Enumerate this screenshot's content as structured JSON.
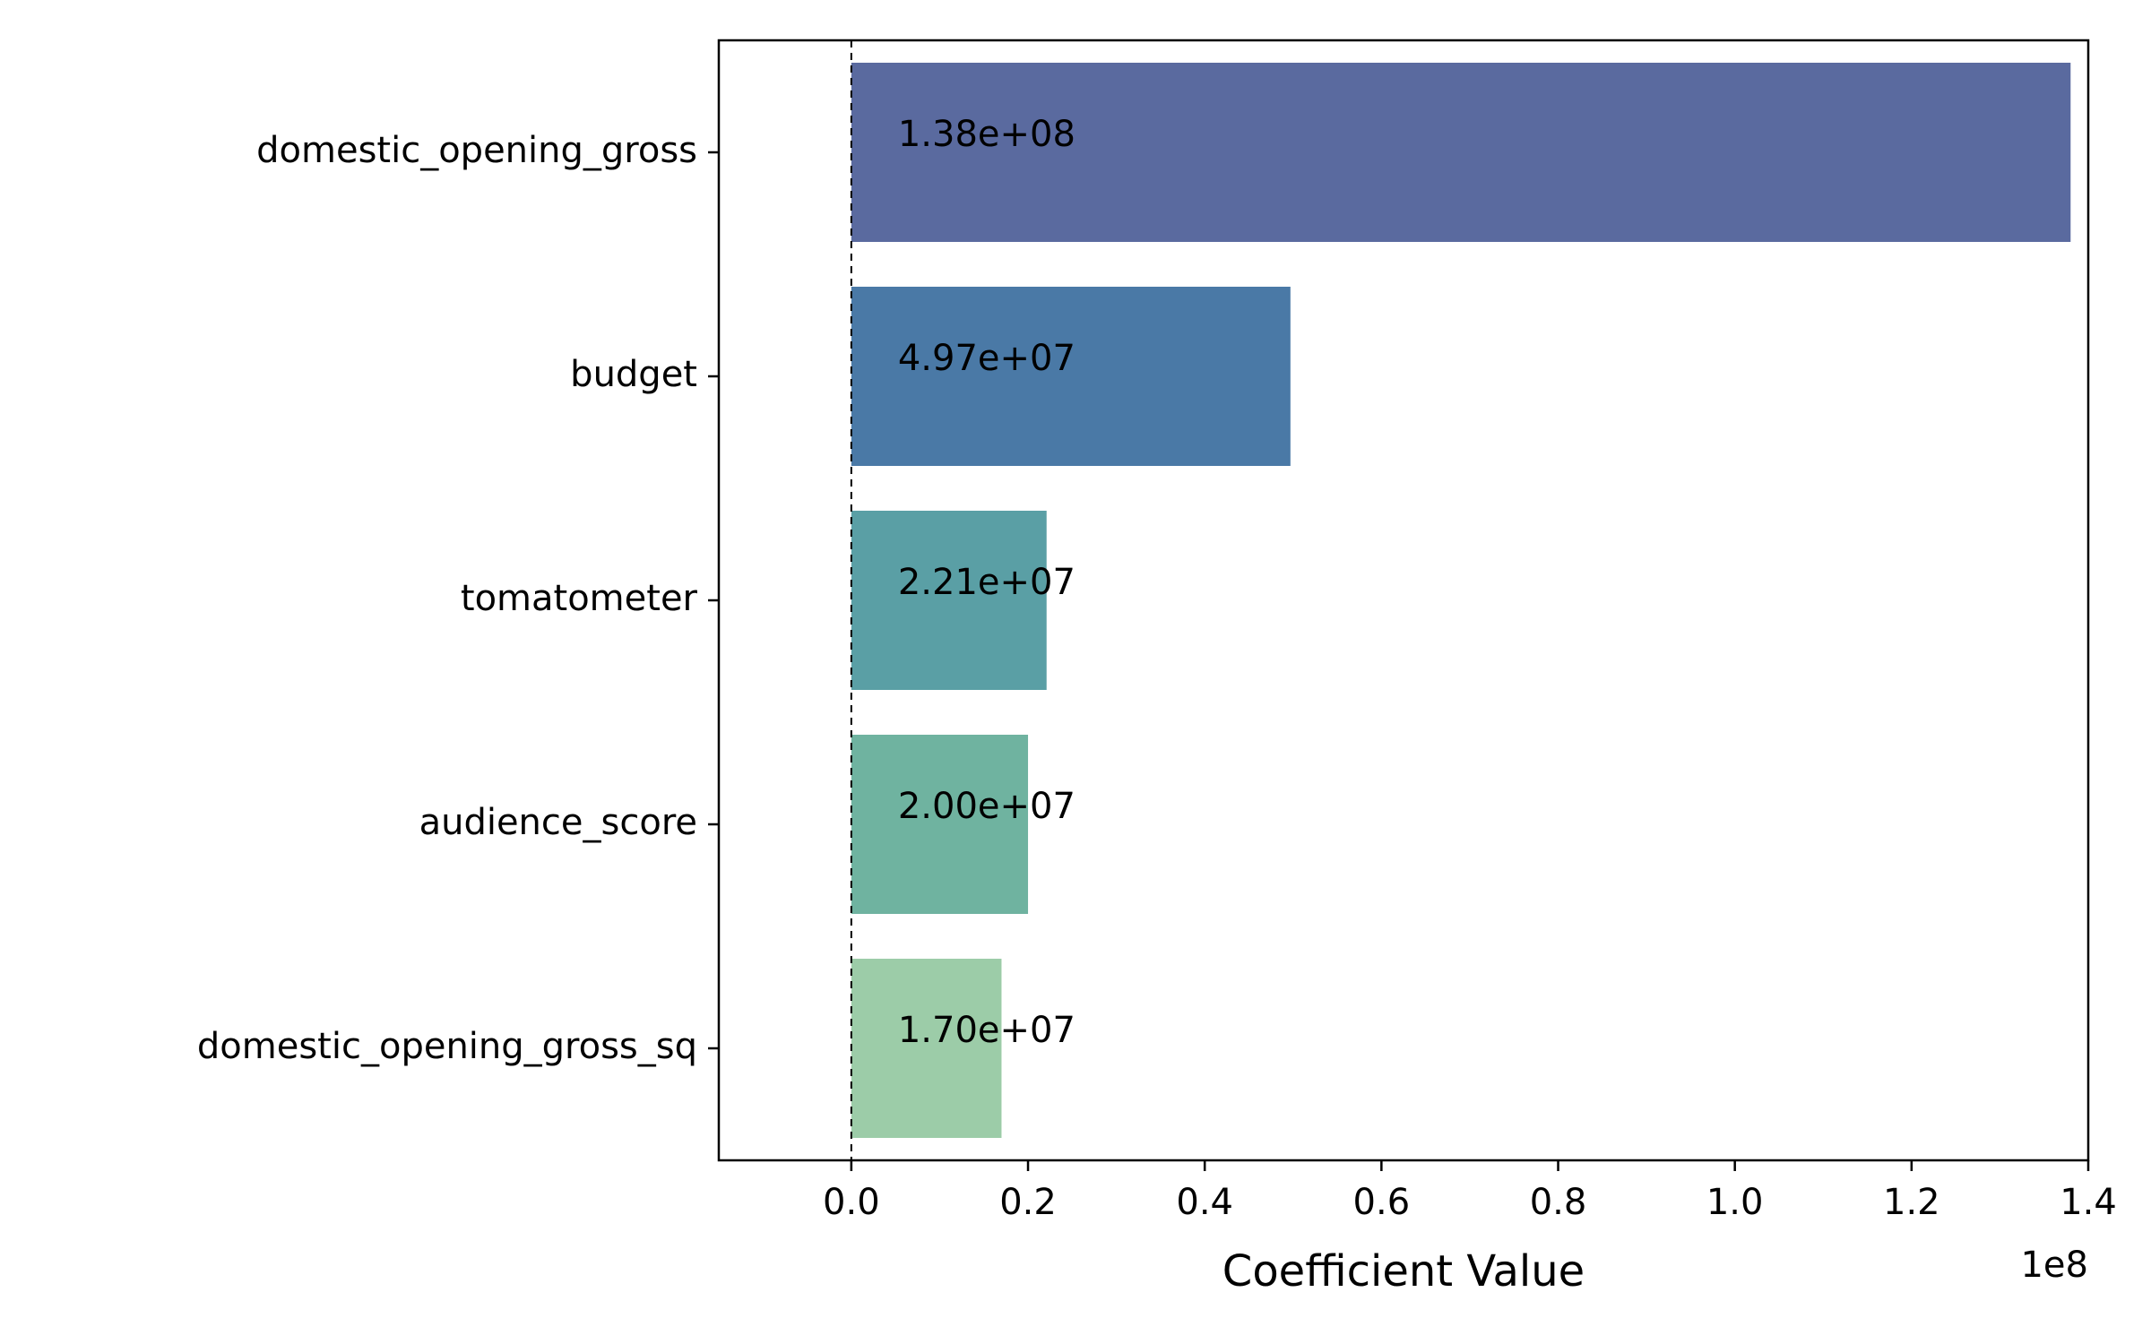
{
  "chart_data": {
    "type": "bar",
    "orientation": "horizontal",
    "title": "",
    "xlabel": "Coefficient Value",
    "ylabel": "",
    "x_offset_label": "1e8",
    "xlim": [
      -0.15,
      1.4
    ],
    "x_ticks": [
      0.0,
      0.2,
      0.4,
      0.6,
      0.8,
      1.0,
      1.2,
      1.4
    ],
    "x_tick_labels": [
      "0.0",
      "0.2",
      "0.4",
      "0.6",
      "0.8",
      "1.0",
      "1.2",
      "1.4"
    ],
    "reference_line": {
      "x": 0,
      "style": "dashed"
    },
    "grid": false,
    "legend": "none",
    "categories": [
      "domestic_opening_gross",
      "budget",
      "tomatometer",
      "audience_score",
      "domestic_opening_gross_sq"
    ],
    "values": [
      1.38,
      0.497,
      0.221,
      0.2,
      0.17
    ],
    "value_labels": [
      "1.38e+08",
      "4.97e+07",
      "2.21e+07",
      "2.00e+07",
      "1.70e+07"
    ],
    "colors": [
      "#5a6a9f",
      "#4a79a6",
      "#5a9fa5",
      "#6fb3a0",
      "#9ccca8"
    ]
  }
}
